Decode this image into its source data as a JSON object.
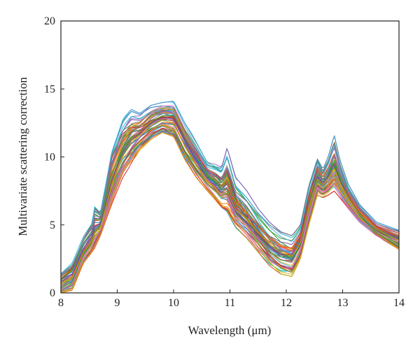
{
  "chart_data": {
    "type": "line",
    "title": "",
    "xlabel": "Wavelength (μm)",
    "ylabel": "Multivariate scattering correction",
    "xlim": [
      8,
      14
    ],
    "ylim": [
      0,
      20
    ],
    "xticks": [
      8,
      9,
      10,
      11,
      12,
      13,
      14
    ],
    "yticks": [
      0,
      5,
      10,
      15,
      20
    ],
    "grid": false,
    "legend": "none",
    "series_count_approx": 60,
    "series_template": {
      "description_x": [
        8.0,
        8.2,
        8.4,
        8.55,
        8.6,
        8.7,
        8.9,
        9.1,
        9.25,
        9.4,
        9.6,
        9.8,
        10.0,
        10.2,
        10.4,
        10.6,
        10.75,
        10.85,
        10.95,
        11.1,
        11.3,
        11.5,
        11.7,
        11.9,
        12.1,
        12.25,
        12.4,
        12.55,
        12.65,
        12.75,
        12.85,
        12.95,
        13.1,
        13.3,
        13.6,
        14.0
      ],
      "envelope_low": [
        0.0,
        0.2,
        2.2,
        3.0,
        3.3,
        4.2,
        6.5,
        8.5,
        9.5,
        10.5,
        11.3,
        11.8,
        11.5,
        9.8,
        8.5,
        7.5,
        6.8,
        6.2,
        5.8,
        4.8,
        4.0,
        3.0,
        2.0,
        1.4,
        1.2,
        2.5,
        5.0,
        7.2,
        7.0,
        7.2,
        7.5,
        7.0,
        6.2,
        5.2,
        4.2,
        3.2
      ],
      "envelope_high": [
        1.4,
        2.2,
        4.2,
        5.2,
        6.5,
        6.0,
        10.5,
        12.8,
        13.5,
        13.2,
        13.8,
        14.0,
        14.1,
        12.5,
        11.2,
        9.8,
        9.7,
        9.5,
        11.0,
        8.5,
        7.5,
        6.2,
        5.2,
        4.5,
        4.2,
        5.0,
        8.0,
        10.0,
        9.2,
        10.2,
        11.7,
        9.8,
        8.0,
        6.5,
        5.2,
        4.6
      ]
    }
  },
  "colors": {
    "palette": [
      "#1f77b4",
      "#d62728",
      "#2ca02c",
      "#ff7f0e",
      "#9467bd",
      "#8c564b",
      "#17becf",
      "#bcbd22",
      "#e377c2",
      "#7f7f7f",
      "#5aa0d8",
      "#e5552b",
      "#3b8e3b",
      "#6a4fa0",
      "#c8a200"
    ],
    "axis": "#222222"
  }
}
